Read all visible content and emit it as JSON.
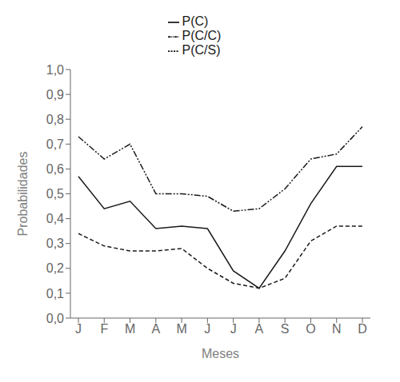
{
  "chart_data": {
    "type": "line",
    "xlabel": "Meses",
    "ylabel": "Probabilidades",
    "categories": [
      "J",
      "F",
      "M",
      "A",
      "M",
      "J",
      "J",
      "A",
      "S",
      "O",
      "N",
      "D"
    ],
    "series": [
      {
        "name": "P(C)",
        "color": "#1a1a1a",
        "line_style": "solid",
        "values": [
          0.57,
          0.44,
          0.47,
          0.36,
          0.37,
          0.36,
          0.19,
          0.12,
          0.27,
          0.46,
          0.61,
          0.61
        ]
      },
      {
        "name": "P(C/S)",
        "color": "#1a1a1a",
        "line_style": "dashed",
        "values": [
          0.34,
          0.29,
          0.27,
          0.27,
          0.28,
          0.2,
          0.14,
          0.12,
          0.16,
          0.31,
          0.37,
          0.37
        ]
      },
      {
        "name": "P(C/C)",
        "color": "#1a1a1a",
        "line_style": "dashdot",
        "values": [
          0.73,
          0.64,
          0.7,
          0.5,
          0.5,
          0.49,
          0.43,
          0.44,
          0.52,
          0.64,
          0.66,
          0.77
        ]
      }
    ],
    "ylim": [
      0.0,
      1.0
    ],
    "yticks": [
      {
        "value": 0.0,
        "label": "0,0"
      },
      {
        "value": 0.1,
        "label": "0,1"
      },
      {
        "value": 0.2,
        "label": "0,2"
      },
      {
        "value": 0.3,
        "label": "0,3"
      },
      {
        "value": 0.4,
        "label": "0,4"
      },
      {
        "value": 0.5,
        "label": "0,5"
      },
      {
        "value": 0.6,
        "label": "0,6"
      },
      {
        "value": 0.7,
        "label": "0,7"
      },
      {
        "value": 0.8,
        "label": "0,8"
      },
      {
        "value": 0.9,
        "label": "0,9"
      },
      {
        "value": 1.0,
        "label": "1,0"
      }
    ],
    "grid": false,
    "legend": "top"
  }
}
